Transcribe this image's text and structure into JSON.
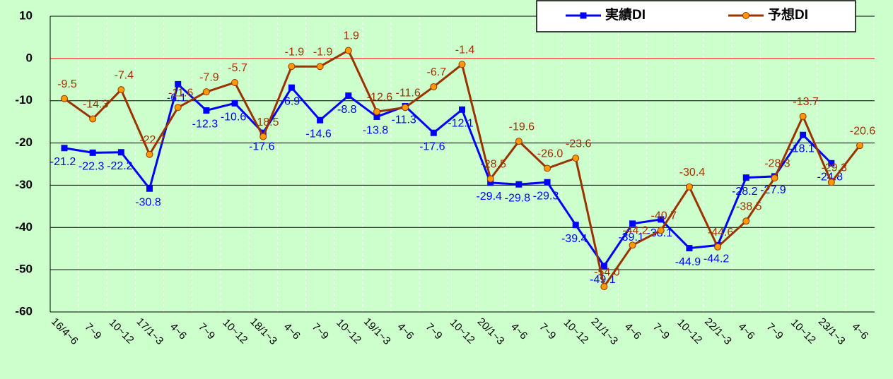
{
  "chart_data": {
    "type": "line",
    "categories": [
      "16/4~6",
      "7~9",
      "10~12",
      "17/1~3",
      "4~6",
      "7~9",
      "10~12",
      "18/1~3",
      "4~6",
      "7~9",
      "10~12",
      "19/1~3",
      "4~6",
      "7~9",
      "10~12",
      "20/1~3",
      "4~6",
      "7~9",
      "10~12",
      "21/1~3",
      "4~6",
      "7~9",
      "10~12",
      "22/1~3",
      "4~6",
      "7~9",
      "10~12",
      "23/1~3",
      "4~6"
    ],
    "series": [
      {
        "name": "実績DI",
        "color": "#0000ff",
        "marker": "square",
        "values": [
          -21.2,
          -22.3,
          -22.2,
          -30.8,
          -6.1,
          -12.3,
          -10.6,
          -17.6,
          -6.9,
          -14.6,
          -8.8,
          -13.8,
          -11.3,
          -17.6,
          -12.1,
          -29.4,
          -29.8,
          -29.3,
          -39.4,
          -49.1,
          -39.1,
          -38.1,
          -44.9,
          -44.2,
          -28.2,
          -27.9,
          -18.1,
          -24.8,
          null
        ],
        "value_labels": [
          "-21.2",
          "-22.3",
          "-22.2",
          "-30.8",
          "-6.1",
          "-12.3",
          "-10.6",
          "-17.6",
          "-6.9",
          "-14.6",
          "-8.8",
          "-13.8",
          "-11.3",
          "-17.6",
          "-12.1",
          "-29.4",
          "-29.8",
          "-29.3",
          "-39.4",
          "-49.1",
          "-39.1",
          "-38.1",
          "-44.9",
          "-44.2",
          "-28.2",
          "-27.9",
          "-18.1",
          "-24.8",
          null
        ]
      },
      {
        "name": "予想DI",
        "color": "#993300",
        "marker": "circle",
        "values": [
          -9.5,
          -14.3,
          -7.4,
          -22.7,
          -11.6,
          -7.9,
          -5.7,
          -18.5,
          -1.9,
          -1.9,
          1.9,
          -12.6,
          -11.6,
          -6.7,
          -1.4,
          -28.5,
          -19.6,
          -26.0,
          -23.6,
          -54.0,
          -44.2,
          -40.7,
          -30.4,
          -44.6,
          -38.5,
          -28.3,
          -13.7,
          -29.3,
          -20.6
        ],
        "value_labels": [
          "-9.5",
          "-14.3",
          "-7.4",
          "-22.7",
          "-11.6",
          "-7.9",
          "-5.7",
          "-18.5",
          "-1.9",
          "-1.9",
          "1.9",
          "-12.6",
          "-11.6",
          "-6.7",
          "-1.4",
          "-28.5",
          "-19.6",
          "-26.0",
          "-23.6",
          "-54.0",
          "-44.2",
          "-40.7",
          "-30.4",
          "-44.6",
          "-38.5",
          "-28.3",
          "-13.7",
          "-29.3",
          "-20.6"
        ]
      }
    ],
    "ylim": [
      -60,
      10
    ],
    "yticks": [
      -60,
      -50,
      -40,
      -30,
      -20,
      -10,
      0,
      10
    ],
    "grid": true,
    "legend": "top-right"
  }
}
